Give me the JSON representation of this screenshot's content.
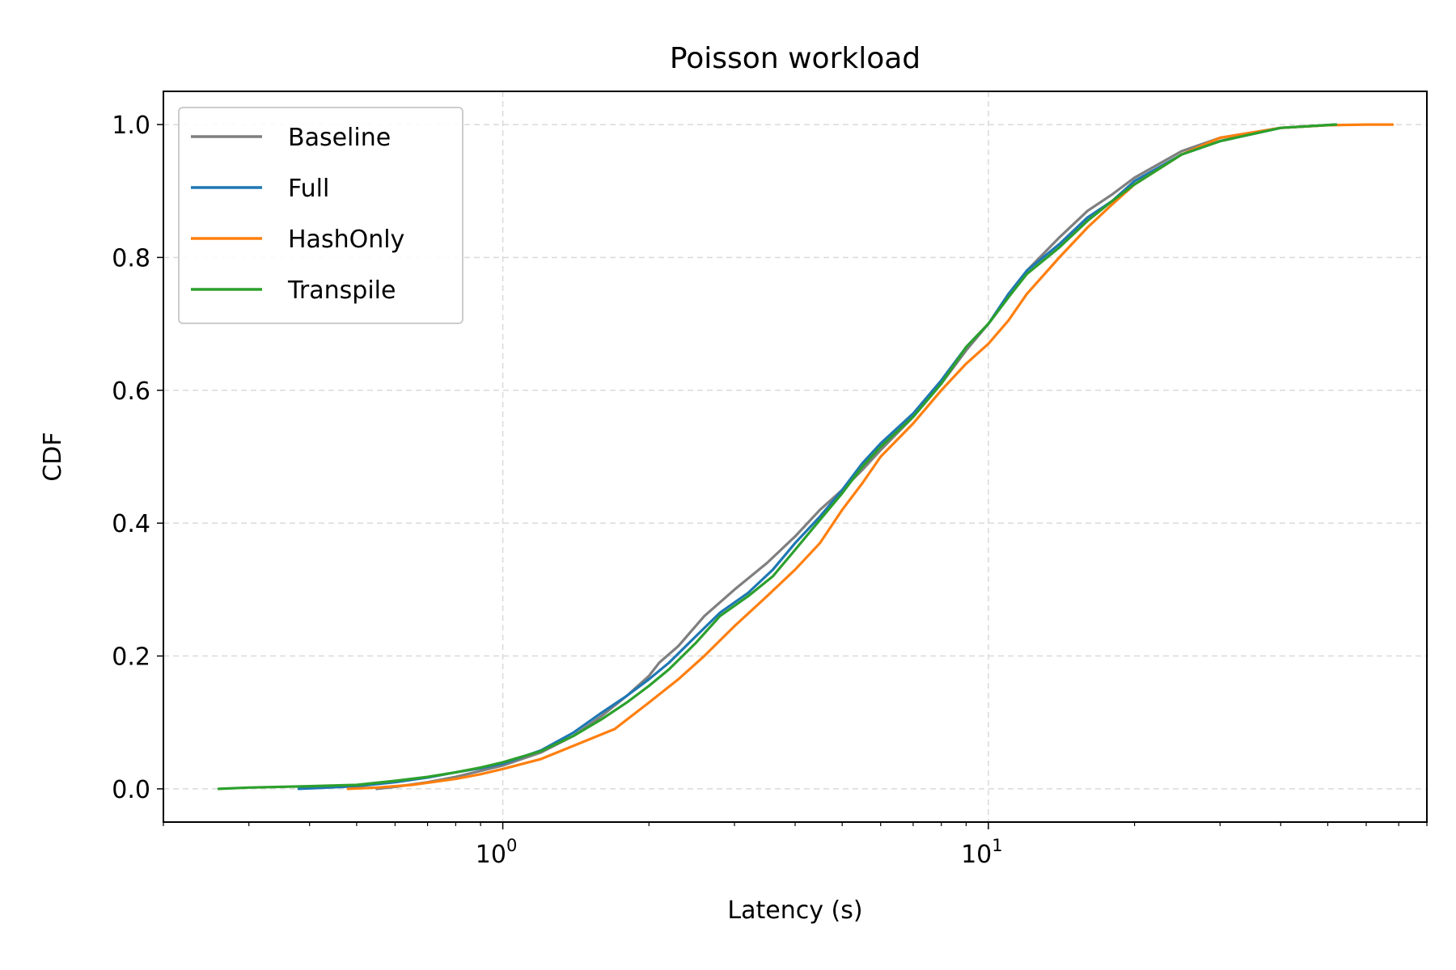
{
  "chart_data": {
    "type": "line",
    "title": "Poisson workload",
    "xlabel": "Latency (s)",
    "ylabel": "CDF",
    "xscale": "log",
    "xlim": [
      0.2,
      80
    ],
    "ylim": [
      -0.05,
      1.05
    ],
    "grid": true,
    "grid_style": "dashed",
    "legend_position": "top-left",
    "x_ticks": [
      {
        "value": 1,
        "base": "10",
        "exp": "0"
      },
      {
        "value": 10,
        "base": "10",
        "exp": "1"
      }
    ],
    "y_ticks": [
      "0.0",
      "0.2",
      "0.4",
      "0.6",
      "0.8",
      "1.0"
    ],
    "series": [
      {
        "name": "Baseline",
        "color": "#7f7f7f",
        "x": [
          0.55,
          0.6,
          0.7,
          0.8,
          0.9,
          1.0,
          1.2,
          1.4,
          1.6,
          1.8,
          2.0,
          2.1,
          2.3,
          2.6,
          3.0,
          3.5,
          4.0,
          4.5,
          5.0,
          5.5,
          6.0,
          7.0,
          8.0,
          9.0,
          10.0,
          11.0,
          12.0,
          14.0,
          16.0,
          18.0,
          20.0,
          25.0,
          30.0,
          40.0,
          52.0
        ],
        "y": [
          0.0,
          0.003,
          0.01,
          0.018,
          0.027,
          0.035,
          0.055,
          0.08,
          0.11,
          0.14,
          0.17,
          0.19,
          0.215,
          0.26,
          0.3,
          0.34,
          0.38,
          0.42,
          0.45,
          0.48,
          0.51,
          0.56,
          0.61,
          0.66,
          0.7,
          0.74,
          0.78,
          0.83,
          0.87,
          0.895,
          0.92,
          0.96,
          0.98,
          0.995,
          1.0
        ]
      },
      {
        "name": "Full",
        "color": "#1f77b4",
        "x": [
          0.38,
          0.5,
          0.6,
          0.7,
          0.8,
          0.9,
          1.0,
          1.2,
          1.4,
          1.6,
          1.8,
          2.0,
          2.2,
          2.5,
          2.8,
          3.2,
          3.6,
          4.0,
          4.5,
          5.0,
          5.5,
          6.0,
          7.0,
          8.0,
          9.0,
          10.0,
          11.0,
          12.0,
          14.0,
          16.0,
          18.0,
          20.0,
          25.0,
          30.0,
          40.0,
          52.0
        ],
        "y": [
          0.0,
          0.004,
          0.01,
          0.017,
          0.025,
          0.031,
          0.038,
          0.058,
          0.085,
          0.115,
          0.14,
          0.165,
          0.19,
          0.23,
          0.265,
          0.295,
          0.33,
          0.37,
          0.41,
          0.45,
          0.49,
          0.52,
          0.565,
          0.615,
          0.665,
          0.7,
          0.745,
          0.78,
          0.82,
          0.86,
          0.885,
          0.915,
          0.955,
          0.975,
          0.995,
          1.0
        ]
      },
      {
        "name": "HashOnly",
        "color": "#ff7f0e",
        "x": [
          0.48,
          0.55,
          0.65,
          0.8,
          0.9,
          1.0,
          1.2,
          1.4,
          1.7,
          2.0,
          2.3,
          2.6,
          3.0,
          3.5,
          4.0,
          4.5,
          5.0,
          5.5,
          6.0,
          7.0,
          8.0,
          9.0,
          10.0,
          11.0,
          12.0,
          14.0,
          16.0,
          18.0,
          20.0,
          25.0,
          30.0,
          40.0,
          50.0,
          60.0,
          68.0
        ],
        "y": [
          0.0,
          0.002,
          0.006,
          0.015,
          0.022,
          0.03,
          0.045,
          0.065,
          0.09,
          0.13,
          0.165,
          0.2,
          0.245,
          0.29,
          0.33,
          0.37,
          0.42,
          0.46,
          0.5,
          0.55,
          0.6,
          0.64,
          0.67,
          0.705,
          0.745,
          0.8,
          0.845,
          0.88,
          0.91,
          0.955,
          0.98,
          0.995,
          0.999,
          1.0,
          1.0
        ]
      },
      {
        "name": "Transpile",
        "color": "#2ca02c",
        "x": [
          0.26,
          0.3,
          0.4,
          0.5,
          0.6,
          0.7,
          0.8,
          0.9,
          1.0,
          1.2,
          1.4,
          1.6,
          1.8,
          2.0,
          2.2,
          2.5,
          2.8,
          3.2,
          3.6,
          4.0,
          4.5,
          5.0,
          5.5,
          6.0,
          7.0,
          8.0,
          9.0,
          10.0,
          11.0,
          12.0,
          14.0,
          16.0,
          18.0,
          20.0,
          25.0,
          30.0,
          40.0,
          52.0
        ],
        "y": [
          0.0,
          0.002,
          0.004,
          0.006,
          0.012,
          0.018,
          0.025,
          0.032,
          0.04,
          0.057,
          0.08,
          0.105,
          0.13,
          0.155,
          0.18,
          0.22,
          0.26,
          0.29,
          0.32,
          0.36,
          0.405,
          0.445,
          0.485,
          0.515,
          0.56,
          0.61,
          0.665,
          0.7,
          0.74,
          0.775,
          0.815,
          0.855,
          0.885,
          0.91,
          0.955,
          0.975,
          0.995,
          1.0
        ]
      }
    ]
  }
}
